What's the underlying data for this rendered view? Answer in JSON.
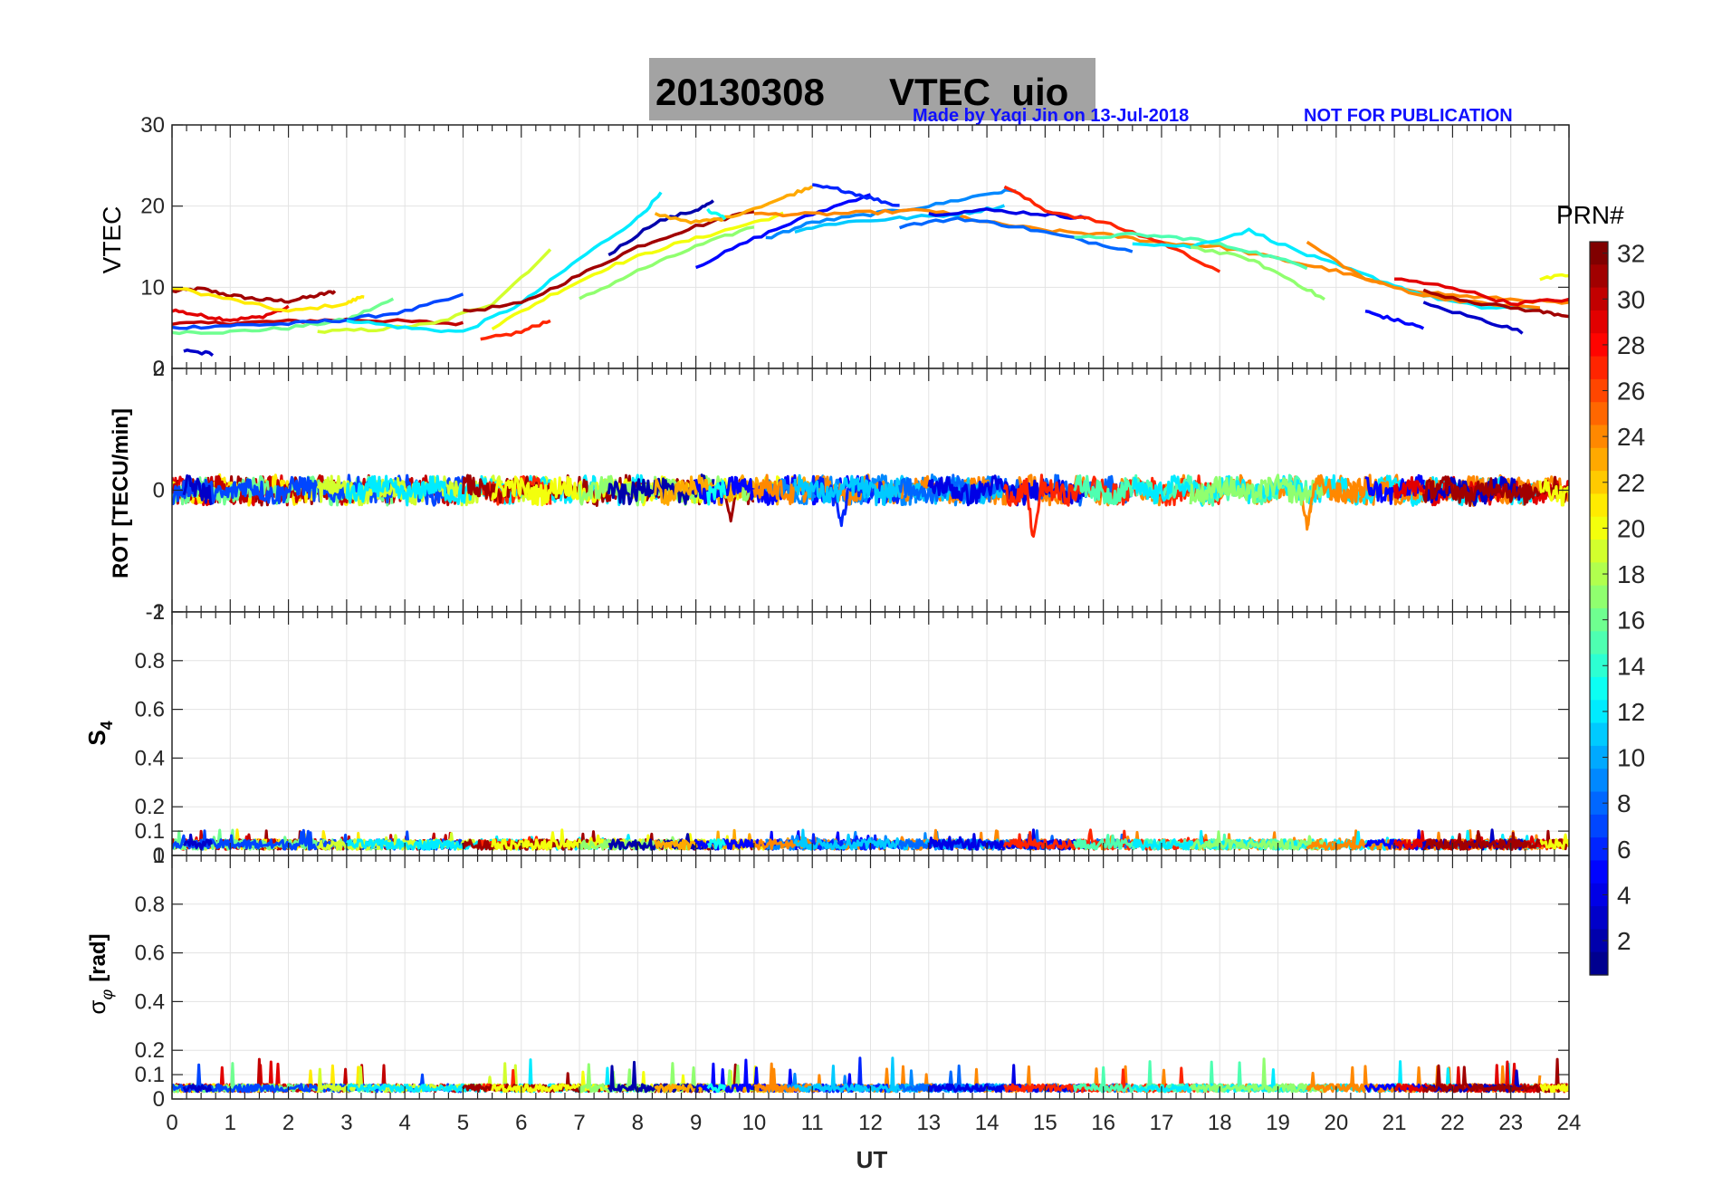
{
  "title": {
    "date": "20130308",
    "label": "VTEC  uio",
    "made_by": "Made by Yaqi Jin on 13-Jul-2018",
    "not_for_publication": "NOT FOR PUBLICATION",
    "box_color": "#a3a3a3"
  },
  "colors": {
    "jet": [
      "#00008f",
      "#0000ff",
      "#0080ff",
      "#00ffff",
      "#80ff80",
      "#ffff00",
      "#ff8000",
      "#ff0000",
      "#800000"
    ]
  },
  "chart_data": [
    {
      "type": "line",
      "name": "vtec-panel",
      "ylabel": "VTEC",
      "ylim": [
        0,
        30
      ],
      "yticks": [
        0,
        10,
        20,
        30
      ],
      "xlim": [
        0,
        24
      ],
      "grid": true,
      "series": [
        {
          "prn": 31,
          "x": [
            0,
            0.5,
            1,
            1.5,
            2,
            2.5,
            2.8
          ],
          "y": [
            9.5,
            9.8,
            9.0,
            8.5,
            8.3,
            9.0,
            9.5
          ]
        },
        {
          "prn": 29,
          "x": [
            0,
            0.5,
            1,
            1.5,
            2
          ],
          "y": [
            7.2,
            6.5,
            6.0,
            6.3,
            7.5
          ]
        },
        {
          "prn": 21,
          "x": [
            0,
            1,
            2,
            3,
            3.3
          ],
          "y": [
            10.0,
            8.5,
            7.0,
            8.0,
            9.0
          ]
        },
        {
          "prn": 30,
          "x": [
            0,
            1,
            2,
            3,
            4,
            5
          ],
          "y": [
            5.5,
            5.6,
            5.8,
            6.0,
            5.8,
            5.5
          ]
        },
        {
          "prn": 16,
          "x": [
            0,
            1,
            2,
            3,
            3.8
          ],
          "y": [
            4.5,
            4.5,
            5.0,
            6.0,
            8.5
          ]
        },
        {
          "prn": 7,
          "x": [
            0,
            1,
            2,
            3,
            4,
            5
          ],
          "y": [
            5.0,
            5.3,
            5.5,
            6.0,
            7.0,
            9.0
          ]
        },
        {
          "prn": 3,
          "x": [
            0.2,
            0.7
          ],
          "y": [
            2.2,
            1.8
          ]
        },
        {
          "prn": 19,
          "x": [
            2.5,
            3.5,
            4.5,
            5.5,
            6.5
          ],
          "y": [
            4.5,
            4.8,
            5.5,
            8.0,
            14.5
          ]
        },
        {
          "prn": 12,
          "x": [
            3,
            4,
            5,
            6,
            7,
            8,
            8.4
          ],
          "y": [
            6.0,
            5.0,
            4.5,
            8.0,
            13.5,
            18.5,
            21.5
          ]
        },
        {
          "prn": 27,
          "x": [
            5.3,
            6,
            6.5
          ],
          "y": [
            3.5,
            4.5,
            6.0
          ]
        },
        {
          "prn": 31,
          "x": [
            5,
            6,
            7,
            8,
            9,
            10
          ],
          "y": [
            7.0,
            8.0,
            11.5,
            15.0,
            17.5,
            19.5
          ]
        },
        {
          "prn": 20,
          "x": [
            5.5,
            6.5,
            7.5,
            8.5,
            9.5,
            10.5
          ],
          "y": [
            5.0,
            9.0,
            12.5,
            15.0,
            17.0,
            19.0
          ]
        },
        {
          "prn": 17,
          "x": [
            7,
            8,
            9,
            10
          ],
          "y": [
            8.5,
            12.0,
            15.0,
            17.5
          ]
        },
        {
          "prn": 2,
          "x": [
            7.5,
            8.3,
            9,
            9.3
          ],
          "y": [
            14.0,
            18.0,
            19.5,
            20.5
          ]
        },
        {
          "prn": 23,
          "x": [
            8.3,
            9,
            9.5,
            10.5,
            11
          ],
          "y": [
            19.0,
            18.0,
            18.5,
            21.0,
            22.5
          ]
        },
        {
          "prn": 5,
          "x": [
            9,
            10,
            11,
            12
          ],
          "y": [
            12.5,
            16.0,
            19.0,
            21.5
          ]
        },
        {
          "prn": 13,
          "x": [
            9.2,
            9.5
          ],
          "y": [
            19.5,
            18.5
          ]
        },
        {
          "prn": 9,
          "x": [
            10.2,
            11,
            12,
            13,
            14,
            14.5
          ],
          "y": [
            16.0,
            18.0,
            19.0,
            20.0,
            21.5,
            22.0
          ]
        },
        {
          "prn": 24,
          "x": [
            10,
            11,
            12,
            13,
            14,
            15,
            16,
            17,
            18,
            19,
            20,
            21,
            22,
            23,
            24
          ],
          "y": [
            19.0,
            19.0,
            19.2,
            19.5,
            18.0,
            17.0,
            16.5,
            15.5,
            15.0,
            13.5,
            12.0,
            10.0,
            9.0,
            8.5,
            8.0
          ]
        },
        {
          "prn": 6,
          "x": [
            11,
            11.5,
            12,
            12.5
          ],
          "y": [
            22.5,
            22.0,
            21.0,
            20.0
          ]
        },
        {
          "prn": 11,
          "x": [
            10.7,
            11.5,
            12.5,
            13.5,
            14.3
          ],
          "y": [
            17.0,
            18.0,
            18.5,
            19.0,
            20.0
          ]
        },
        {
          "prn": 8,
          "x": [
            12.5,
            13.5,
            14.5,
            15.5,
            16.5
          ],
          "y": [
            17.5,
            18.5,
            17.5,
            16.0,
            14.5
          ]
        },
        {
          "prn": 4,
          "x": [
            13,
            14,
            15,
            15.7
          ],
          "y": [
            19.0,
            19.5,
            19.0,
            18.5
          ]
        },
        {
          "prn": 27,
          "x": [
            14.3,
            15,
            16,
            17,
            18
          ],
          "y": [
            22.5,
            19.5,
            18.0,
            15.5,
            12.0
          ]
        },
        {
          "prn": 15,
          "x": [
            15.5,
            16.5,
            17.5,
            18.5,
            19.5
          ],
          "y": [
            16.0,
            16.5,
            16.0,
            14.5,
            12.5
          ]
        },
        {
          "prn": 12,
          "x": [
            16.5,
            17.5,
            18.5,
            19.5,
            20.5,
            21.5,
            22.5,
            23.5
          ],
          "y": [
            15.5,
            15.0,
            17.0,
            14.0,
            11.5,
            9.0,
            7.5,
            7.5
          ]
        },
        {
          "prn": 17,
          "x": [
            17.5,
            18.5,
            19.2,
            19.8
          ],
          "y": [
            15.0,
            13.5,
            11.0,
            8.5
          ]
        },
        {
          "prn": 24,
          "x": [
            19.5,
            20.5,
            21.5,
            22.5,
            23.5
          ],
          "y": [
            15.5,
            11.0,
            9.0,
            8.0,
            7.5
          ]
        },
        {
          "prn": 5,
          "x": [
            20.5,
            21,
            21.5
          ],
          "y": [
            7.0,
            6.0,
            5.0
          ]
        },
        {
          "prn": 29,
          "x": [
            21,
            22,
            23,
            24
          ],
          "y": [
            11.0,
            10.0,
            8.0,
            8.5
          ]
        },
        {
          "prn": 3,
          "x": [
            21.5,
            22.5,
            23.2
          ],
          "y": [
            8.0,
            6.0,
            4.5
          ]
        },
        {
          "prn": 31,
          "x": [
            21.5,
            22.5,
            23.5,
            24
          ],
          "y": [
            9.5,
            8.0,
            7.0,
            6.5
          ]
        },
        {
          "prn": 20,
          "x": [
            23.5,
            24
          ],
          "y": [
            11.0,
            11.5
          ]
        }
      ]
    },
    {
      "type": "line",
      "name": "rot-panel",
      "ylabel": "ROT [TECU/min]",
      "ylim": [
        -2,
        2
      ],
      "yticks": [
        -2,
        0,
        2
      ],
      "xlim": [
        0,
        24
      ],
      "grid": true,
      "series_description": "ROT fluctuates around 0 for all PRNs, mostly within +/-0.3",
      "excursions": [
        {
          "prn": 24,
          "x": 8.6,
          "y": -0.7
        },
        {
          "prn": 12,
          "x": 9.2,
          "y": -0.9
        },
        {
          "prn": 31,
          "x": 9.6,
          "y": -0.5
        },
        {
          "prn": 6,
          "x": 11.5,
          "y": -0.6
        },
        {
          "prn": 23,
          "x": 13.5,
          "y": -0.6
        },
        {
          "prn": 27,
          "x": 14.8,
          "y": -0.8
        },
        {
          "prn": 24,
          "x": 19.5,
          "y": -0.6
        },
        {
          "prn": 13,
          "x": 8.3,
          "y": 0.7
        },
        {
          "prn": 3,
          "x": 9.0,
          "y": 0.75
        },
        {
          "prn": 9,
          "x": 15.6,
          "y": 0.6
        }
      ]
    },
    {
      "type": "line",
      "name": "s4-panel",
      "ylabel": "S4",
      "ylim": [
        0,
        1
      ],
      "yticks": [
        0,
        0.1,
        0.2,
        0.4,
        0.6,
        0.8,
        1
      ],
      "xlim": [
        0,
        24
      ],
      "grid": true,
      "series_description": "S4 index stays between about 0.02 and 0.1 for all PRNs over the day"
    },
    {
      "type": "line",
      "name": "sigma-phi-panel",
      "ylabel": "σφ [rad]",
      "ylim": [
        0,
        1
      ],
      "yticks": [
        0,
        0.1,
        0.2,
        0.4,
        0.6,
        0.8,
        1
      ],
      "xlim": [
        0,
        24
      ],
      "xticks": [
        0,
        1,
        2,
        3,
        4,
        5,
        6,
        7,
        8,
        9,
        10,
        11,
        12,
        13,
        14,
        15,
        16,
        17,
        18,
        19,
        20,
        21,
        22,
        23,
        24
      ],
      "xlabel": "UT",
      "grid": true,
      "series_description": "Phase scintillation about 0.03-0.06 rad with spikes up to 0.14 rad near 1-2.5 UT"
    }
  ],
  "labels": {
    "vtec_ylabel": "VTEC",
    "rot_ylabel": "ROT [TECU/min]",
    "s4_ylabel_main": "S",
    "s4_ylabel_sub": "4",
    "sigma_ylabel_main": "σ",
    "sigma_ylabel_sub": "φ",
    "sigma_ylabel_unit": "[rad]",
    "xlabel": "UT"
  },
  "colorbar": {
    "title": "PRN#",
    "min": 1,
    "max": 32,
    "ticks": [
      2,
      4,
      6,
      8,
      10,
      12,
      14,
      16,
      18,
      20,
      22,
      24,
      26,
      28,
      30,
      32
    ]
  }
}
